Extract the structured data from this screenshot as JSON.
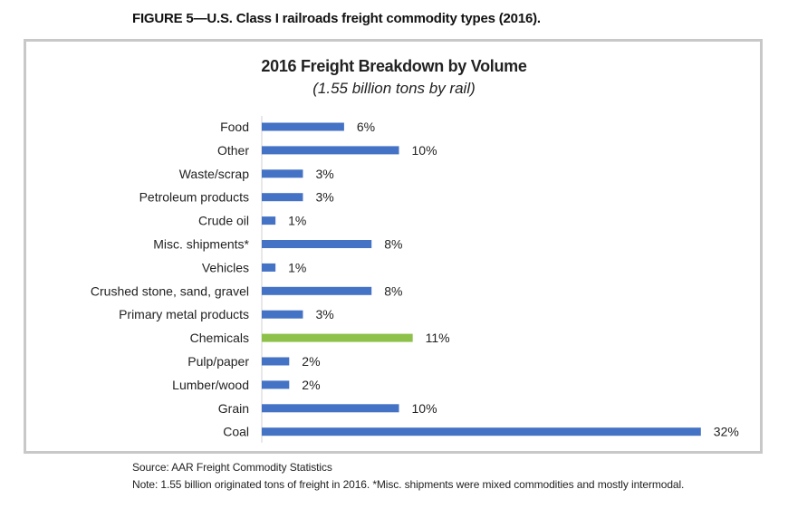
{
  "figure_title": "FIGURE 5—U.S. Class I railroads freight commodity types (2016).",
  "source": "Source: AAR Freight Commodity Statistics",
  "note": "Note: 1.55 billion originated tons of freight in 2016. *Misc. shipments were mixed commodities and mostly intermodal.",
  "colors": {
    "bar": "#4472c4",
    "highlight": "#8dc14a",
    "axis": "#d0d0d0",
    "frame": "#c8c8c8"
  },
  "chart_data": {
    "type": "bar",
    "orientation": "horizontal",
    "title": "2016 Freight Breakdown by Volume",
    "subtitle": "(1.55 billion tons by rail)",
    "xlabel": "",
    "ylabel": "",
    "grid": false,
    "categories": [
      "Food",
      "Other",
      "Waste/scrap",
      "Petroleum products",
      "Crude oil",
      "Misc. shipments*",
      "Vehicles",
      "Crushed stone, sand, gravel",
      "Primary metal products",
      "Chemicals",
      "Pulp/paper",
      "Lumber/wood",
      "Grain",
      "Coal"
    ],
    "values": [
      6,
      10,
      3,
      3,
      1,
      8,
      1,
      8,
      3,
      11,
      2,
      2,
      10,
      32
    ],
    "labels": [
      "6%",
      "10%",
      "3%",
      "3%",
      "1%",
      "8%",
      "1%",
      "8%",
      "3%",
      "11%",
      "2%",
      "2%",
      "10%",
      "32%"
    ],
    "highlight": "Chemicals",
    "xlim": [
      0,
      32
    ]
  }
}
